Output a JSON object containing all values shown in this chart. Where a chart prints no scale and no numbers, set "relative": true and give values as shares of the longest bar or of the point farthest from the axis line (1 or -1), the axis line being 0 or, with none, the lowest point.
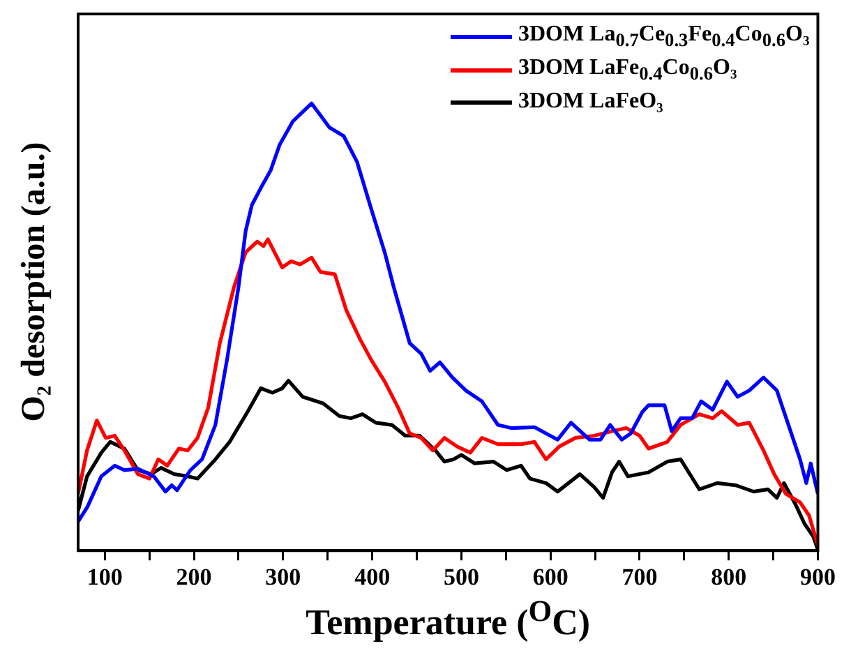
{
  "chart_data": {
    "type": "line",
    "xlabel": "Temperature ($^{O}$C)",
    "ylabel": "O₂ desorption (a.u.)",
    "relative": true,
    "xlim": [
      70,
      900
    ],
    "xticks": [
      100,
      {
        "value": 150,
        "label": null
      },
      200,
      {
        "value": 250,
        "label": null
      },
      300,
      {
        "value": 350,
        "label": null
      },
      400,
      {
        "value": 450,
        "label": null
      },
      500,
      {
        "value": 550,
        "label": null
      },
      600,
      {
        "value": 650,
        "label": null
      },
      700,
      {
        "value": 750,
        "label": null
      },
      800,
      {
        "value": 850,
        "label": null
      },
      900
    ],
    "legend": "top right",
    "grid": false,
    "marker": "none",
    "line_style": "solid",
    "series": [
      {
        "name": "3DOM La$_{0.7}$Ce$_{0.3}$Fe$_{0.4}$Co$_{0.6}$O₃",
        "color": "#0000ff",
        "x": [
          70,
          80.5,
          96,
          111,
          122,
          137,
          155,
          168,
          175,
          181,
          196,
          209,
          224,
          237,
          250,
          258,
          265,
          275,
          286,
          296,
          311,
          332,
          352,
          368,
          383,
          399,
          414,
          424,
          442,
          455,
          465,
          476,
          490,
          505,
          523,
          541,
          556,
          582,
          608,
          623,
          644,
          656,
          667,
          680,
          690,
          703,
          710,
          728,
          736,
          746,
          759,
          769,
          782,
          798,
          810,
          823,
          839,
          854,
          867,
          880,
          887,
          892,
          900
        ],
        "values": [
          0.065,
          0.098,
          0.166,
          0.19,
          0.18,
          0.183,
          0.166,
          0.132,
          0.146,
          0.135,
          0.18,
          0.204,
          0.281,
          0.426,
          0.59,
          0.715,
          0.773,
          0.811,
          0.85,
          0.907,
          0.96,
          1.0,
          0.946,
          0.927,
          0.869,
          0.763,
          0.667,
          0.59,
          0.464,
          0.44,
          0.402,
          0.421,
          0.387,
          0.358,
          0.334,
          0.281,
          0.274,
          0.276,
          0.248,
          0.286,
          0.248,
          0.248,
          0.281,
          0.248,
          0.262,
          0.31,
          0.325,
          0.325,
          0.267,
          0.296,
          0.296,
          0.334,
          0.315,
          0.378,
          0.344,
          0.358,
          0.387,
          0.358,
          0.281,
          0.204,
          0.151,
          0.195,
          0.127
        ]
      },
      {
        "name": "3DOM LaFe$_{0.4}$Co$_{0.6}$O₃",
        "color": "#ff0000",
        "x": [
          70,
          80,
          91,
          101,
          111,
          122,
          137,
          150,
          160,
          170,
          183,
          193,
          204,
          216,
          229,
          245,
          258,
          271,
          278,
          283,
          299,
          309,
          319,
          332,
          342,
          358,
          371,
          386,
          399,
          414,
          429,
          442,
          455,
          468,
          481,
          495,
          510,
          523,
          541,
          567,
          582,
          595,
          610,
          628,
          649,
          669,
          685,
          700,
          710,
          731,
          746,
          767,
          782,
          792,
          810,
          823,
          839,
          851,
          864,
          880,
          890,
          900
        ],
        "values": [
          0.127,
          0.224,
          0.291,
          0.252,
          0.257,
          0.224,
          0.171,
          0.161,
          0.204,
          0.19,
          0.228,
          0.224,
          0.252,
          0.32,
          0.464,
          0.59,
          0.667,
          0.691,
          0.681,
          0.696,
          0.633,
          0.647,
          0.64,
          0.655,
          0.623,
          0.618,
          0.537,
          0.474,
          0.426,
          0.378,
          0.32,
          0.262,
          0.252,
          0.224,
          0.252,
          0.233,
          0.219,
          0.252,
          0.238,
          0.238,
          0.243,
          0.204,
          0.233,
          0.252,
          0.257,
          0.267,
          0.274,
          0.257,
          0.228,
          0.243,
          0.281,
          0.305,
          0.296,
          0.312,
          0.281,
          0.286,
          0.224,
          0.171,
          0.127,
          0.108,
          0.079,
          0.012
        ]
      },
      {
        "name": "3DOM LaFeO₃",
        "color": "#000000",
        "x": [
          70,
          80,
          96,
          106,
          122,
          137,
          152,
          163,
          178,
          193,
          204,
          224,
          240,
          260,
          275,
          288,
          299,
          306,
          322,
          345,
          363,
          376,
          389,
          404,
          422,
          437,
          453,
          471,
          481,
          491,
          500,
          515,
          536,
          551,
          567,
          577,
          595,
          608,
          633,
          649,
          659,
          669,
          677,
          687,
          710,
          731,
          746,
          767,
          787,
          808,
          828,
          844,
          854,
          862,
          875,
          885,
          895,
          900
        ],
        "values": [
          0.089,
          0.166,
          0.219,
          0.243,
          0.228,
          0.18,
          0.171,
          0.185,
          0.171,
          0.166,
          0.161,
          0.204,
          0.243,
          0.31,
          0.363,
          0.353,
          0.363,
          0.38,
          0.344,
          0.329,
          0.301,
          0.296,
          0.305,
          0.286,
          0.281,
          0.257,
          0.257,
          0.224,
          0.199,
          0.204,
          0.214,
          0.195,
          0.199,
          0.18,
          0.19,
          0.161,
          0.151,
          0.132,
          0.171,
          0.142,
          0.118,
          0.175,
          0.199,
          0.166,
          0.175,
          0.199,
          0.204,
          0.137,
          0.151,
          0.146,
          0.132,
          0.137,
          0.118,
          0.151,
          0.103,
          0.06,
          0.031,
          0.002
        ]
      }
    ]
  }
}
